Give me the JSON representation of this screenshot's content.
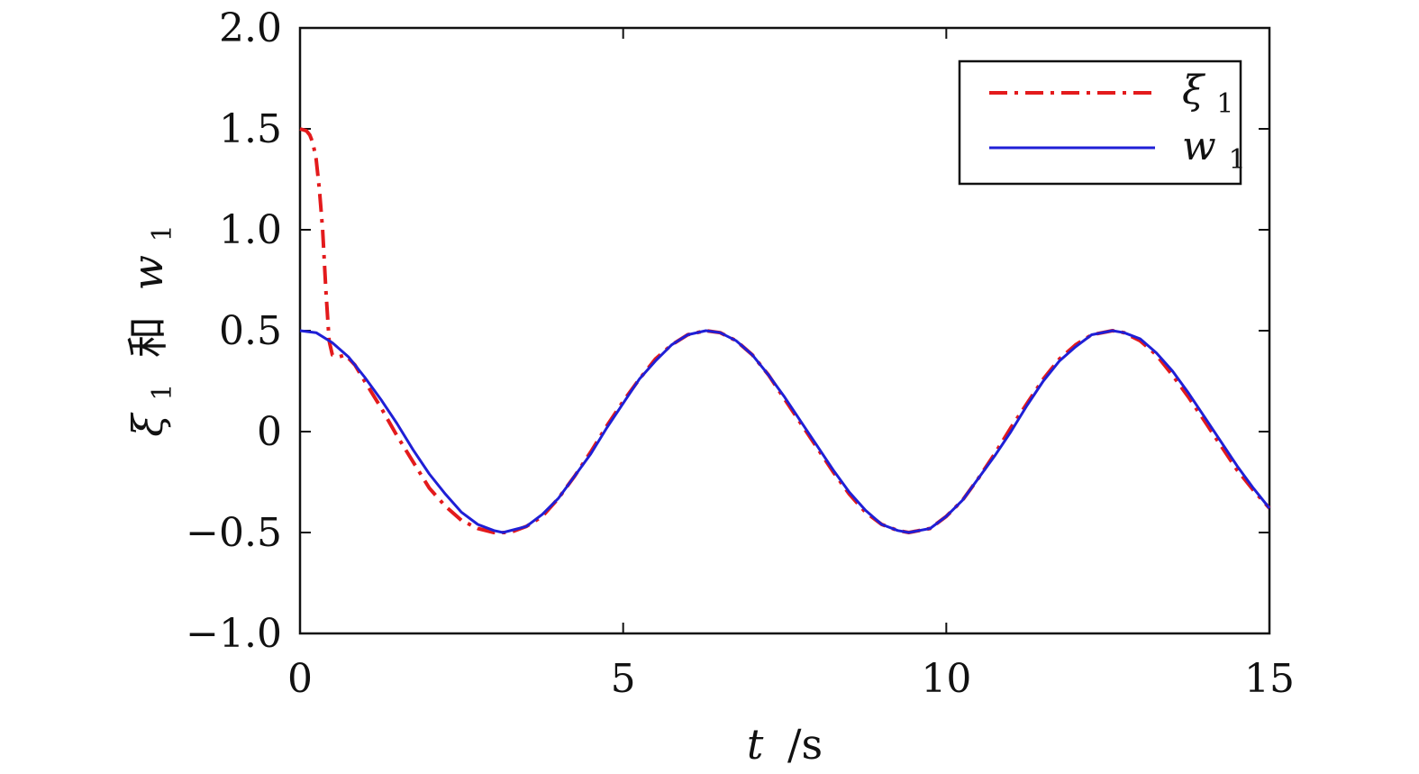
{
  "chart_data": {
    "type": "line",
    "xlabel": {
      "var": "t",
      "unit": "/s"
    },
    "ylabel": {
      "sym1": "ξ",
      "sub1": "1",
      "conj": "和",
      "sym2": "w",
      "sub2": "1"
    },
    "xlim": [
      0,
      15
    ],
    "ylim": [
      -1.0,
      2.0
    ],
    "xticks": [
      0,
      5,
      10,
      15
    ],
    "xtick_labels": [
      "0",
      "5",
      "10",
      "15"
    ],
    "yticks": [
      -1.0,
      -0.5,
      0,
      0.5,
      1.0,
      1.5,
      2.0
    ],
    "ytick_labels": [
      "−1.0",
      "−0.5",
      "0",
      "0.5",
      "1.0",
      "1.5",
      "2.0"
    ],
    "grid": false,
    "legend_position": "top-right",
    "series": [
      {
        "name": "ξ1",
        "legend_sym": "ξ",
        "legend_sub": "1",
        "color": "#e31a1c",
        "style": "dash-dot",
        "points": [
          [
            0.0,
            1.5
          ],
          [
            0.1,
            1.49
          ],
          [
            0.15,
            1.47
          ],
          [
            0.2,
            1.43
          ],
          [
            0.25,
            1.35
          ],
          [
            0.3,
            1.2
          ],
          [
            0.35,
            1.0
          ],
          [
            0.4,
            0.7
          ],
          [
            0.45,
            0.45
          ],
          [
            0.5,
            0.38
          ],
          [
            0.6,
            0.37
          ],
          [
            0.7,
            0.38
          ],
          [
            0.85,
            0.33
          ],
          [
            1.0,
            0.25
          ],
          [
            1.25,
            0.12
          ],
          [
            1.5,
            -0.02
          ],
          [
            1.75,
            -0.15
          ],
          [
            2.0,
            -0.28
          ],
          [
            2.25,
            -0.37
          ],
          [
            2.5,
            -0.44
          ],
          [
            2.75,
            -0.48
          ],
          [
            3.0,
            -0.5
          ],
          [
            3.25,
            -0.5
          ],
          [
            3.5,
            -0.47
          ],
          [
            3.75,
            -0.42
          ],
          [
            4.0,
            -0.33
          ],
          [
            4.25,
            -0.22
          ],
          [
            4.5,
            -0.1
          ],
          [
            4.75,
            0.03
          ],
          [
            5.0,
            0.15
          ],
          [
            5.25,
            0.26
          ],
          [
            5.5,
            0.36
          ],
          [
            5.75,
            0.43
          ],
          [
            6.0,
            0.48
          ],
          [
            6.28,
            0.5
          ],
          [
            6.5,
            0.49
          ],
          [
            6.75,
            0.45
          ],
          [
            7.0,
            0.38
          ],
          [
            7.25,
            0.28
          ],
          [
            7.5,
            0.16
          ],
          [
            7.75,
            0.04
          ],
          [
            8.0,
            -0.08
          ],
          [
            8.25,
            -0.2
          ],
          [
            8.5,
            -0.31
          ],
          [
            8.75,
            -0.4
          ],
          [
            9.0,
            -0.46
          ],
          [
            9.25,
            -0.49
          ],
          [
            9.42,
            -0.5
          ],
          [
            9.75,
            -0.48
          ],
          [
            10.0,
            -0.42
          ],
          [
            10.25,
            -0.34
          ],
          [
            10.5,
            -0.23
          ],
          [
            10.75,
            -0.11
          ],
          [
            11.0,
            0.02
          ],
          [
            11.25,
            0.14
          ],
          [
            11.5,
            0.26
          ],
          [
            11.75,
            0.36
          ],
          [
            12.0,
            0.43
          ],
          [
            12.25,
            0.48
          ],
          [
            12.57,
            0.5
          ],
          [
            12.75,
            0.49
          ],
          [
            13.0,
            0.45
          ],
          [
            13.25,
            0.38
          ],
          [
            13.5,
            0.28
          ],
          [
            13.75,
            0.17
          ],
          [
            14.0,
            0.05
          ],
          [
            14.25,
            -0.07
          ],
          [
            14.5,
            -0.19
          ],
          [
            14.75,
            -0.29
          ],
          [
            15.0,
            -0.38
          ]
        ]
      },
      {
        "name": "w1",
        "legend_sym": "w",
        "legend_sub": "1",
        "color": "#1f1fd6",
        "style": "solid",
        "points": [
          [
            0.0,
            0.5
          ],
          [
            0.25,
            0.49
          ],
          [
            0.5,
            0.44
          ],
          [
            0.75,
            0.37
          ],
          [
            1.0,
            0.27
          ],
          [
            1.25,
            0.16
          ],
          [
            1.5,
            0.04
          ],
          [
            1.75,
            -0.09
          ],
          [
            2.0,
            -0.21
          ],
          [
            2.25,
            -0.31
          ],
          [
            2.5,
            -0.4
          ],
          [
            2.75,
            -0.46
          ],
          [
            3.0,
            -0.49
          ],
          [
            3.14,
            -0.5
          ],
          [
            3.5,
            -0.47
          ],
          [
            3.75,
            -0.41
          ],
          [
            4.0,
            -0.33
          ],
          [
            4.25,
            -0.22
          ],
          [
            4.5,
            -0.11
          ],
          [
            4.75,
            0.02
          ],
          [
            5.0,
            0.14
          ],
          [
            5.25,
            0.26
          ],
          [
            5.5,
            0.35
          ],
          [
            5.75,
            0.43
          ],
          [
            6.0,
            0.48
          ],
          [
            6.28,
            0.5
          ],
          [
            6.5,
            0.49
          ],
          [
            6.75,
            0.45
          ],
          [
            7.0,
            0.38
          ],
          [
            7.25,
            0.28
          ],
          [
            7.5,
            0.17
          ],
          [
            7.75,
            0.05
          ],
          [
            8.0,
            -0.07
          ],
          [
            8.25,
            -0.19
          ],
          [
            8.5,
            -0.3
          ],
          [
            8.75,
            -0.39
          ],
          [
            9.0,
            -0.46
          ],
          [
            9.25,
            -0.49
          ],
          [
            9.42,
            -0.5
          ],
          [
            9.75,
            -0.48
          ],
          [
            10.0,
            -0.42
          ],
          [
            10.25,
            -0.34
          ],
          [
            10.5,
            -0.23
          ],
          [
            10.75,
            -0.12
          ],
          [
            11.0,
            0.0
          ],
          [
            11.25,
            0.13
          ],
          [
            11.5,
            0.25
          ],
          [
            11.75,
            0.35
          ],
          [
            12.0,
            0.42
          ],
          [
            12.25,
            0.48
          ],
          [
            12.57,
            0.5
          ],
          [
            12.75,
            0.49
          ],
          [
            13.0,
            0.46
          ],
          [
            13.25,
            0.39
          ],
          [
            13.5,
            0.3
          ],
          [
            13.75,
            0.19
          ],
          [
            14.0,
            0.07
          ],
          [
            14.25,
            -0.05
          ],
          [
            14.5,
            -0.17
          ],
          [
            14.75,
            -0.28
          ],
          [
            15.0,
            -0.38
          ]
        ]
      }
    ]
  }
}
